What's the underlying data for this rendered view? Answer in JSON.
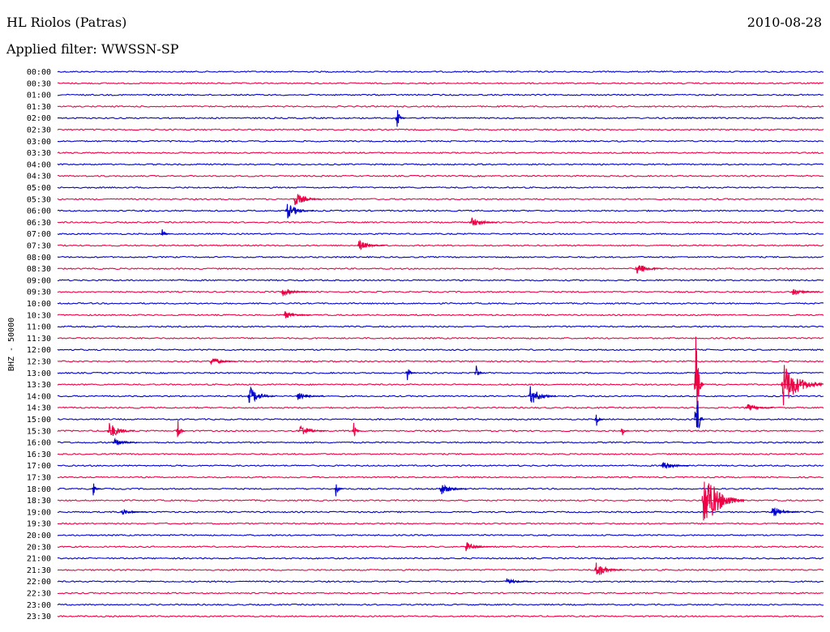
{
  "chart_data": {
    "type": "helicorder",
    "title": "HL Riolos (Patras)",
    "subtitle": "Applied filter: WWSSN-SP",
    "date": "2010-08-28",
    "ylabel": "BHZ - 50000",
    "row_labels": [
      "00:00",
      "00:30",
      "01:00",
      "01:30",
      "02:00",
      "02:30",
      "03:00",
      "03:30",
      "04:00",
      "04:30",
      "05:00",
      "05:30",
      "06:00",
      "06:30",
      "07:00",
      "07:30",
      "08:00",
      "08:30",
      "09:00",
      "09:30",
      "10:00",
      "10:30",
      "11:00",
      "11:30",
      "12:00",
      "12:30",
      "13:00",
      "13:30",
      "14:00",
      "14:30",
      "15:00",
      "15:30",
      "16:00",
      "16:30",
      "17:00",
      "17:30",
      "18:00",
      "18:30",
      "19:00",
      "19:30",
      "20:00",
      "20:30",
      "21:00",
      "21:30",
      "22:00",
      "22:30",
      "23:00",
      "23:30"
    ],
    "trace_minutes": 30,
    "series_colors": [
      "#0000cc",
      "#ee0044"
    ],
    "events": [
      {
        "row": 4,
        "minute": 13.3,
        "amplitude": 22,
        "kind": "spike"
      },
      {
        "row": 11,
        "minute": 9.3,
        "amplitude": 9,
        "kind": "burst"
      },
      {
        "row": 12,
        "minute": 9.0,
        "amplitude": 10,
        "kind": "burst"
      },
      {
        "row": 13,
        "minute": 16.2,
        "amplitude": 7,
        "kind": "burst"
      },
      {
        "row": 14,
        "minute": 4.1,
        "amplitude": 8,
        "kind": "spike"
      },
      {
        "row": 15,
        "minute": 11.8,
        "amplitude": 7,
        "kind": "burst"
      },
      {
        "row": 17,
        "minute": 22.7,
        "amplitude": 9,
        "kind": "burst"
      },
      {
        "row": 19,
        "minute": 8.8,
        "amplitude": 6,
        "kind": "burst"
      },
      {
        "row": 19,
        "minute": 28.8,
        "amplitude": 5,
        "kind": "burst"
      },
      {
        "row": 21,
        "minute": 8.9,
        "amplitude": 5,
        "kind": "burst"
      },
      {
        "row": 25,
        "minute": 6.0,
        "amplitude": 6,
        "kind": "burst"
      },
      {
        "row": 26,
        "minute": 13.7,
        "amplitude": 11,
        "kind": "spike"
      },
      {
        "row": 26,
        "minute": 16.4,
        "amplitude": 11,
        "kind": "spike"
      },
      {
        "row": 27,
        "minute": 25.0,
        "amplitude": 95,
        "kind": "spike"
      },
      {
        "row": 27,
        "minute": 28.4,
        "amplitude": 30,
        "kind": "burst"
      },
      {
        "row": 28,
        "minute": 7.5,
        "amplitude": 13,
        "kind": "burst"
      },
      {
        "row": 28,
        "minute": 18.5,
        "amplitude": 13,
        "kind": "burst"
      },
      {
        "row": 28,
        "minute": 9.4,
        "amplitude": 5,
        "kind": "burst"
      },
      {
        "row": 29,
        "minute": 27.0,
        "amplitude": 5,
        "kind": "burst"
      },
      {
        "row": 30,
        "minute": 21.1,
        "amplitude": 10,
        "kind": "spike"
      },
      {
        "row": 30,
        "minute": 25.0,
        "amplitude": 80,
        "kind": "spike"
      },
      {
        "row": 31,
        "minute": 2.0,
        "amplitude": 12,
        "kind": "burst"
      },
      {
        "row": 31,
        "minute": 4.7,
        "amplitude": 20,
        "kind": "spike"
      },
      {
        "row": 31,
        "minute": 9.5,
        "amplitude": 8,
        "kind": "burst"
      },
      {
        "row": 31,
        "minute": 11.6,
        "amplitude": 10,
        "kind": "spike"
      },
      {
        "row": 31,
        "minute": 22.1,
        "amplitude": 10,
        "kind": "spike"
      },
      {
        "row": 32,
        "minute": 2.2,
        "amplitude": 5,
        "kind": "burst"
      },
      {
        "row": 34,
        "minute": 23.7,
        "amplitude": 6,
        "kind": "burst"
      },
      {
        "row": 36,
        "minute": 1.4,
        "amplitude": 9,
        "kind": "spike"
      },
      {
        "row": 36,
        "minute": 10.9,
        "amplitude": 13,
        "kind": "spike"
      },
      {
        "row": 36,
        "minute": 15.0,
        "amplitude": 8,
        "kind": "burst"
      },
      {
        "row": 37,
        "minute": 25.3,
        "amplitude": 40,
        "kind": "burst"
      },
      {
        "row": 38,
        "minute": 2.5,
        "amplitude": 4,
        "kind": "burst"
      },
      {
        "row": 38,
        "minute": 28.0,
        "amplitude": 8,
        "kind": "burst"
      },
      {
        "row": 41,
        "minute": 16.0,
        "amplitude": 6,
        "kind": "burst"
      },
      {
        "row": 43,
        "minute": 21.1,
        "amplitude": 10,
        "kind": "burst"
      },
      {
        "row": 44,
        "minute": 17.6,
        "amplitude": 4,
        "kind": "burst"
      }
    ]
  }
}
